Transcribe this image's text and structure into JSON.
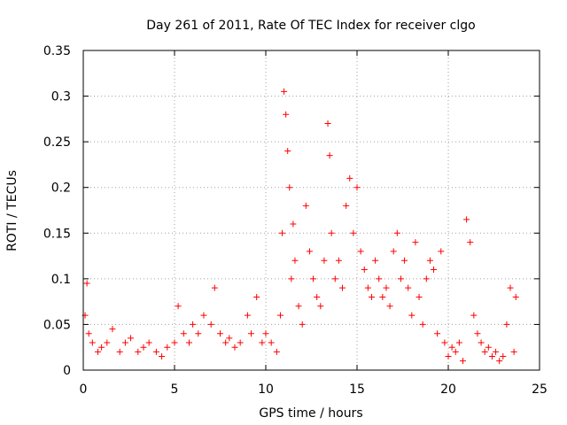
{
  "chart_data": {
    "type": "scatter",
    "title": "Day 261 of 2011, Rate Of TEC Index for receiver clgo",
    "xlabel": "GPS time / hours",
    "ylabel": "ROTI / TECUs",
    "xlim": [
      0,
      25
    ],
    "ylim": [
      0,
      0.35
    ],
    "x_ticks": [
      "0",
      "5",
      "10",
      "15",
      "20",
      "25"
    ],
    "y_ticks": [
      "0",
      "0.05",
      "0.1",
      "0.15",
      "0.2",
      "0.25",
      "0.3",
      "0.35"
    ],
    "grid": true,
    "marker": "+",
    "color": "#ff0000",
    "series": [
      {
        "x": [
          0.1,
          0.2,
          0.3,
          0.5,
          0.8,
          1.0,
          1.3,
          1.6,
          2.0,
          2.3,
          2.6,
          3.0,
          3.3,
          3.6,
          4.0,
          4.3,
          4.6,
          5.0,
          5.2,
          5.5,
          5.8,
          6.0,
          6.3,
          6.6,
          7.0,
          7.2,
          7.5,
          7.8,
          8.0,
          8.3,
          8.6,
          9.0,
          9.2,
          9.5,
          9.8,
          10.0,
          10.3,
          10.6,
          10.8,
          10.9,
          11.0,
          11.1,
          11.2,
          11.3,
          11.4,
          11.5,
          11.6,
          11.8,
          12.0,
          12.2,
          12.4,
          12.6,
          12.8,
          13.0,
          13.2,
          13.4,
          13.5,
          13.6,
          13.8,
          14.0,
          14.2,
          14.4,
          14.6,
          14.8,
          15.0,
          15.2,
          15.4,
          15.6,
          15.8,
          16.0,
          16.2,
          16.4,
          16.6,
          16.8,
          17.0,
          17.2,
          17.4,
          17.6,
          17.8,
          18.0,
          18.2,
          18.4,
          18.6,
          18.8,
          19.0,
          19.2,
          19.4,
          19.6,
          19.8,
          20.0,
          20.2,
          20.4,
          20.6,
          20.8,
          21.0,
          21.2,
          21.4,
          21.6,
          21.8,
          22.0,
          22.2,
          22.4,
          22.6,
          22.8,
          23.0,
          23.2,
          23.4,
          23.6,
          23.7
        ],
        "y": [
          0.06,
          0.095,
          0.04,
          0.03,
          0.02,
          0.025,
          0.03,
          0.045,
          0.02,
          0.03,
          0.035,
          0.02,
          0.025,
          0.03,
          0.02,
          0.015,
          0.025,
          0.03,
          0.07,
          0.04,
          0.03,
          0.05,
          0.04,
          0.06,
          0.05,
          0.09,
          0.04,
          0.03,
          0.035,
          0.025,
          0.03,
          0.06,
          0.04,
          0.08,
          0.03,
          0.04,
          0.03,
          0.02,
          0.06,
          0.15,
          0.305,
          0.28,
          0.24,
          0.2,
          0.1,
          0.16,
          0.12,
          0.07,
          0.05,
          0.18,
          0.13,
          0.1,
          0.08,
          0.07,
          0.12,
          0.27,
          0.235,
          0.15,
          0.1,
          0.12,
          0.09,
          0.18,
          0.21,
          0.15,
          0.2,
          0.13,
          0.11,
          0.09,
          0.08,
          0.12,
          0.1,
          0.08,
          0.09,
          0.07,
          0.13,
          0.15,
          0.1,
          0.12,
          0.09,
          0.06,
          0.14,
          0.08,
          0.05,
          0.1,
          0.12,
          0.11,
          0.04,
          0.13,
          0.03,
          0.015,
          0.025,
          0.02,
          0.03,
          0.01,
          0.165,
          0.14,
          0.06,
          0.04,
          0.03,
          0.02,
          0.025,
          0.015,
          0.02,
          0.01,
          0.015,
          0.05,
          0.09,
          0.02,
          0.08
        ]
      }
    ]
  }
}
